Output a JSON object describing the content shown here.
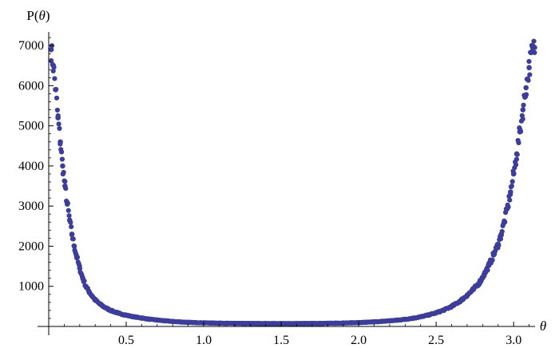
{
  "chart_data": {
    "type": "scatter",
    "title": "",
    "xlabel": "θ",
    "ylabel": {
      "prefix": "P(",
      "symbol": "θ",
      "suffix": ")"
    },
    "xlim": [
      0,
      3.2
    ],
    "ylim": [
      0,
      7300
    ],
    "x_ticks": [
      {
        "value": 0.5,
        "label": "0.5"
      },
      {
        "value": 1.0,
        "label": "1.0"
      },
      {
        "value": 1.5,
        "label": "1.5"
      },
      {
        "value": 2.0,
        "label": "2.0"
      },
      {
        "value": 2.5,
        "label": "2.5"
      },
      {
        "value": 3.0,
        "label": "3.0"
      }
    ],
    "y_ticks": [
      {
        "value": 1000,
        "label": "1000"
      },
      {
        "value": 2000,
        "label": "2000"
      },
      {
        "value": 3000,
        "label": "3000"
      },
      {
        "value": 4000,
        "label": "4000"
      },
      {
        "value": 5000,
        "label": "5000"
      },
      {
        "value": 6000,
        "label": "6000"
      },
      {
        "value": 7000,
        "label": "7000"
      }
    ],
    "point_color": "#3d3d9a",
    "grid": false,
    "legend": "none",
    "series": [
      {
        "x": [
          0.016,
          0.03,
          0.045,
          0.06,
          0.075,
          0.09,
          0.105,
          0.12,
          0.135,
          0.15,
          0.165,
          0.18,
          0.2,
          0.22,
          0.24,
          0.26,
          0.28,
          0.3,
          0.33,
          0.36,
          0.4,
          0.45,
          0.5,
          0.55,
          0.6,
          0.65,
          0.7,
          0.75,
          0.8,
          0.85,
          0.9,
          0.95,
          1.0,
          1.05,
          1.1,
          1.15,
          1.2,
          1.25,
          1.3,
          1.35,
          1.4,
          1.45,
          1.5,
          1.55,
          1.6,
          1.65,
          1.7,
          1.75,
          1.8,
          1.85,
          1.9,
          1.95,
          2.0,
          2.05,
          2.1,
          2.15,
          2.2,
          2.25,
          2.3,
          2.35,
          2.4,
          2.45,
          2.5,
          2.55,
          2.6,
          2.65,
          2.7,
          2.74,
          2.78,
          2.81,
          2.84,
          2.87,
          2.9,
          2.92,
          2.94,
          2.96,
          2.98,
          3.0,
          3.02,
          3.04,
          3.06,
          3.08,
          3.1,
          3.12,
          3.135
        ],
        "y": [
          6900,
          6500,
          5900,
          5200,
          4600,
          4000,
          3500,
          3050,
          2650,
          2300,
          2000,
          1750,
          1450,
          1200,
          1000,
          870,
          760,
          660,
          560,
          480,
          400,
          330,
          280,
          240,
          210,
          180,
          160,
          140,
          125,
          112,
          102,
          95,
          90,
          86,
          82,
          79,
          77,
          75,
          74,
          73,
          72,
          72,
          72,
          72,
          72,
          73,
          74,
          76,
          78,
          81,
          85,
          90,
          96,
          104,
          114,
          126,
          140,
          157,
          178,
          205,
          240,
          285,
          340,
          410,
          500,
          620,
          780,
          920,
          1100,
          1300,
          1520,
          1780,
          2050,
          2300,
          2620,
          2950,
          3350,
          3800,
          4300,
          4850,
          5400,
          5950,
          6450,
          6850,
          6950
        ]
      }
    ]
  }
}
